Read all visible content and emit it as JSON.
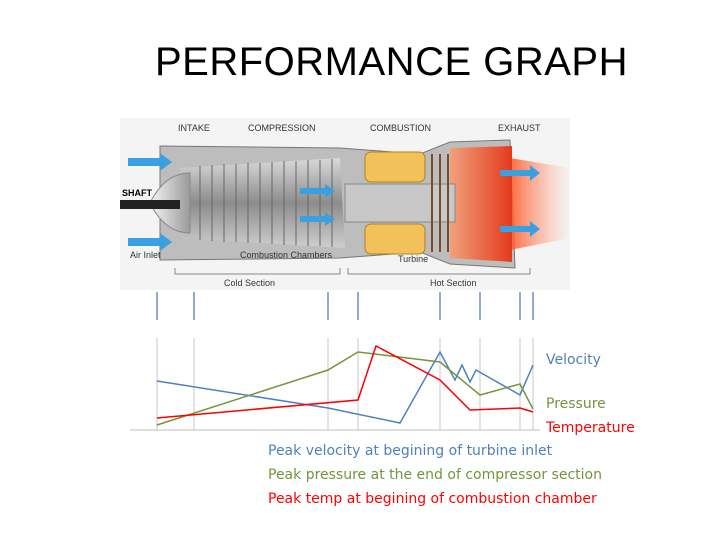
{
  "slide": {
    "title": "PERFORMANCE GRAPH"
  },
  "engine_diagram": {
    "top_labels": [
      "INTAKE",
      "COMPRESSION",
      "COMBUSTION",
      "EXHAUST"
    ],
    "shaft_label": "SHAFT",
    "air_inlet_label": "Air Inlet",
    "combustion_chambers_label": "Combustion Chambers",
    "turbine_label": "Turbine",
    "cold_section_label": "Cold Section",
    "hot_section_label": "Hot Section"
  },
  "graph": {
    "legend": {
      "velocity": "Velocity",
      "pressure": "Pressure",
      "temperature": "Temperature"
    },
    "colors": {
      "velocity": "#4f81bd",
      "pressure": "#77933c",
      "temperature": "#ff0000"
    }
  },
  "notes": {
    "velocity": "Peak velocity at begining of turbine inlet",
    "pressure": "Peak pressure at the end of compressor section",
    "temperature": "Peak temp at begining of combustion chamber"
  }
}
